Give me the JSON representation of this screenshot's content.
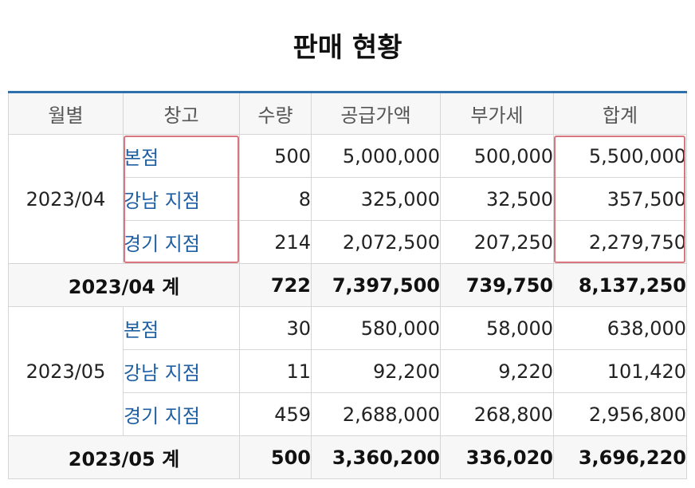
{
  "title": "판매 현황",
  "columns": [
    "월별",
    "창고",
    "수량",
    "공급가액",
    "부가세",
    "합계"
  ],
  "groups": [
    {
      "month": "2023/04",
      "rows": [
        {
          "store": "본점",
          "qty": "500",
          "supply": "5,000,000",
          "vat": "500,000",
          "total": "5,500,000"
        },
        {
          "store": "강남 지점",
          "qty": "8",
          "supply": "325,000",
          "vat": "32,500",
          "total": "357,500"
        },
        {
          "store": "경기 지점",
          "qty": "214",
          "supply": "2,072,500",
          "vat": "207,250",
          "total": "2,279,750"
        }
      ],
      "subtotal": {
        "label": "2023/04 계",
        "qty": "722",
        "supply": "7,397,500",
        "vat": "739,750",
        "total": "8,137,250"
      }
    },
    {
      "month": "2023/05",
      "rows": [
        {
          "store": "본점",
          "qty": "30",
          "supply": "580,000",
          "vat": "58,000",
          "total": "638,000"
        },
        {
          "store": "강남 지점",
          "qty": "11",
          "supply": "92,200",
          "vat": "9,220",
          "total": "101,420"
        },
        {
          "store": "경기 지점",
          "qty": "459",
          "supply": "2,688,000",
          "vat": "268,800",
          "total": "2,956,800"
        }
      ],
      "subtotal": {
        "label": "2023/05 계",
        "qty": "500",
        "supply": "3,360,200",
        "vat": "336,020",
        "total": "3,696,220"
      }
    }
  ],
  "highlight_color": "#d9757f"
}
